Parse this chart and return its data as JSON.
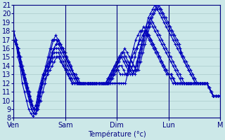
{
  "xlabel": "Température (°c)",
  "ylim": [
    8,
    21
  ],
  "yticks": [
    8,
    9,
    10,
    11,
    12,
    13,
    14,
    15,
    16,
    17,
    18,
    19,
    20,
    21
  ],
  "x_day_labels": [
    "Ven",
    "Sam",
    "Dim",
    "Lun",
    "M"
  ],
  "x_day_positions": [
    0,
    24,
    48,
    72,
    96
  ],
  "background_color": "#cce8e8",
  "plot_color": "#0000bb",
  "grid_color": "#aacaca",
  "series": [
    [
      18,
      17,
      15,
      14,
      12,
      11,
      10,
      9,
      8.5,
      8.2,
      8.5,
      9,
      10,
      12,
      13,
      14,
      15,
      16,
      17,
      17,
      17,
      16.5,
      16,
      15.5,
      15,
      14.5,
      14,
      13.5,
      13,
      13,
      12.5,
      12,
      12,
      12,
      12,
      12,
      12,
      12,
      12,
      12,
      12,
      12,
      12,
      12,
      12,
      12,
      12,
      12,
      12,
      12,
      12,
      12,
      12,
      13,
      14,
      15,
      15.5,
      16,
      16.5,
      17,
      17.5,
      18,
      18,
      17.5,
      17,
      16.5,
      16,
      15.5,
      15,
      14.5,
      14,
      13.5,
      13,
      12.5,
      12,
      12,
      12,
      12,
      12,
      12,
      12,
      12,
      12,
      12,
      12,
      12,
      12,
      12,
      12,
      12,
      12,
      11.5,
      11,
      10.5,
      10.5,
      10.5,
      10.5
    ],
    [
      18,
      17,
      16,
      15,
      13,
      12,
      11,
      10,
      9,
      8.5,
      9,
      9.5,
      10.5,
      12,
      13,
      14,
      15,
      16,
      17,
      17.5,
      17,
      16.5,
      16,
      15.5,
      15,
      14.5,
      14,
      13,
      12.5,
      12,
      12,
      12,
      12,
      12,
      12,
      12,
      12,
      12,
      12,
      12,
      12,
      12,
      12,
      12,
      12.5,
      13,
      13.5,
      13.5,
      13,
      13,
      13,
      13,
      14,
      15,
      16,
      17,
      17.5,
      18,
      18,
      18,
      17.5,
      17,
      16.5,
      16,
      15.5,
      15,
      14.5,
      14,
      13.5,
      13,
      13,
      13,
      12.5,
      12,
      12,
      12,
      12,
      12,
      12,
      12,
      12,
      12,
      12,
      12,
      12,
      12,
      12,
      12,
      11.5,
      11,
      10.5,
      10.5,
      10.5,
      10.5
    ],
    [
      18,
      17,
      16,
      14,
      13,
      12,
      11,
      10,
      9,
      8.5,
      8.5,
      9,
      10,
      11,
      12,
      13,
      14,
      15,
      16,
      16.5,
      17,
      16.5,
      16,
      15.5,
      14.5,
      14,
      13.5,
      13,
      12.5,
      12,
      12,
      12,
      12,
      12,
      12,
      12,
      12,
      12,
      12,
      12,
      12,
      12,
      12,
      12,
      12.5,
      13,
      13.5,
      14,
      14,
      13.5,
      13,
      13,
      13.5,
      14,
      15,
      16,
      17,
      18,
      18.5,
      18,
      17.5,
      17,
      16.5,
      16,
      15.5,
      15,
      14.5,
      14,
      13.5,
      13,
      13,
      12.5,
      12,
      12,
      12,
      12,
      12,
      12,
      12,
      12,
      12,
      12,
      12,
      12,
      12,
      12,
      12,
      11.5,
      11,
      10.5,
      10.5,
      10.5,
      10.5
    ],
    [
      17,
      16.5,
      16,
      15,
      14,
      13,
      12,
      11,
      10,
      9,
      9.5,
      10.5,
      11.5,
      12.5,
      13,
      13.5,
      14,
      15,
      16,
      16.5,
      16.5,
      16,
      15.5,
      15,
      14.5,
      14,
      13.5,
      13,
      12.5,
      12,
      12,
      12,
      12,
      12,
      12,
      12,
      12,
      12,
      12,
      12,
      12,
      12,
      12,
      12.5,
      13,
      13.5,
      14,
      14.5,
      15,
      14.5,
      14,
      13.5,
      13,
      13,
      13.5,
      14,
      15,
      16,
      17,
      18,
      18.5,
      19,
      18.5,
      18,
      17.5,
      17,
      16.5,
      16,
      15.5,
      15,
      14.5,
      14,
      13.5,
      13,
      12.5,
      12,
      12,
      12,
      12,
      12,
      12,
      12,
      12,
      12,
      12,
      12,
      12,
      11.5,
      11,
      10.5,
      10.5,
      10.5,
      10.5
    ],
    [
      17,
      16.5,
      15.5,
      14.5,
      13.5,
      12.5,
      11.5,
      10.5,
      9.5,
      9,
      9.5,
      10.5,
      11.5,
      12.5,
      13,
      13.5,
      14.5,
      15.5,
      16,
      16,
      16,
      15.5,
      15,
      14.5,
      14,
      13.5,
      13,
      12.5,
      12,
      12,
      12,
      12,
      12,
      12,
      12,
      12,
      12,
      12,
      12,
      12,
      12,
      12,
      12,
      12.5,
      13,
      13.5,
      14,
      14.5,
      15,
      15,
      14.5,
      14,
      13.5,
      13,
      13.5,
      14.5,
      15.5,
      16.5,
      17.5,
      18.5,
      19,
      19.5,
      19,
      18.5,
      18,
      17.5,
      17,
      16.5,
      16,
      15.5,
      15,
      14.5,
      14,
      13.5,
      13,
      12.5,
      12,
      12,
      12,
      12,
      12,
      12,
      12,
      12,
      12,
      12,
      12,
      11.5,
      11,
      10.5,
      10.5,
      10.5,
      10.5
    ],
    [
      17,
      16.5,
      15.5,
      14.5,
      13.5,
      12.5,
      11.5,
      10.5,
      9.5,
      9,
      9.5,
      11,
      12,
      13,
      13.5,
      14,
      14.5,
      15,
      15.5,
      15.5,
      15.5,
      15,
      14.5,
      14,
      13.5,
      13,
      12.5,
      12,
      12,
      12,
      12,
      12,
      12,
      12,
      12,
      12,
      12,
      12,
      12,
      12,
      12,
      12,
      12.5,
      13,
      13.5,
      14,
      14.5,
      15,
      15,
      15,
      14.5,
      14,
      13.5,
      13,
      13.5,
      14.5,
      15.5,
      16.5,
      17.5,
      18.5,
      19.5,
      20,
      20.5,
      21,
      20.5,
      20,
      19.5,
      19,
      18.5,
      18,
      17.5,
      17,
      16.5,
      16,
      15.5,
      15,
      14.5,
      14,
      13.5,
      13,
      12.5,
      12,
      12,
      12,
      12,
      12,
      12,
      11.5,
      11,
      10.5,
      10.5,
      10.5,
      10.5
    ],
    [
      17,
      16.5,
      15.5,
      14.5,
      13.5,
      12.5,
      11.5,
      10.5,
      9.5,
      9,
      9,
      10,
      11.5,
      12.5,
      13,
      13.5,
      14,
      14.5,
      15,
      15,
      15,
      14.5,
      14,
      13.5,
      13,
      12.5,
      12,
      12,
      12,
      12,
      12,
      12,
      12,
      12,
      12,
      12,
      12,
      12,
      12,
      12,
      12,
      12,
      12.5,
      13,
      13.5,
      14,
      14.5,
      15,
      15.5,
      15.5,
      15,
      14.5,
      14,
      13.5,
      13,
      13.5,
      14.5,
      15.5,
      16.5,
      17.5,
      18.5,
      19.5,
      20,
      20.5,
      21,
      20.5,
      20,
      19.5,
      19,
      18.5,
      18,
      17.5,
      17,
      16.5,
      16,
      15,
      14.5,
      14,
      13.5,
      13,
      12.5,
      12,
      12,
      12,
      12,
      12,
      12,
      11.5,
      11,
      10.5,
      10.5,
      10.5,
      10.5
    ],
    [
      17,
      16.5,
      15.5,
      14.5,
      13.5,
      12.5,
      11.5,
      10.5,
      9.5,
      9,
      9,
      10,
      11,
      12,
      12.5,
      13,
      13.5,
      14,
      14.5,
      15,
      15,
      14.5,
      14,
      13.5,
      13,
      12.5,
      12,
      12,
      12,
      12,
      12,
      12,
      12,
      12,
      12,
      12,
      12,
      12,
      12,
      12,
      12,
      12,
      12.5,
      13,
      13.5,
      14,
      14.5,
      15,
      15.5,
      16,
      15.5,
      15,
      14.5,
      14,
      13.5,
      13.5,
      14.5,
      15.5,
      16.5,
      17.5,
      18.5,
      19.5,
      20,
      20.5,
      21,
      20.5,
      20,
      19.5,
      19,
      18.5,
      18,
      17.5,
      17,
      16.5,
      15.5,
      15,
      14.5,
      14,
      13.5,
      13,
      12.5,
      12,
      12,
      12,
      12,
      12,
      11.5,
      11,
      10.5,
      10.5,
      10.5,
      10.5
    ]
  ]
}
